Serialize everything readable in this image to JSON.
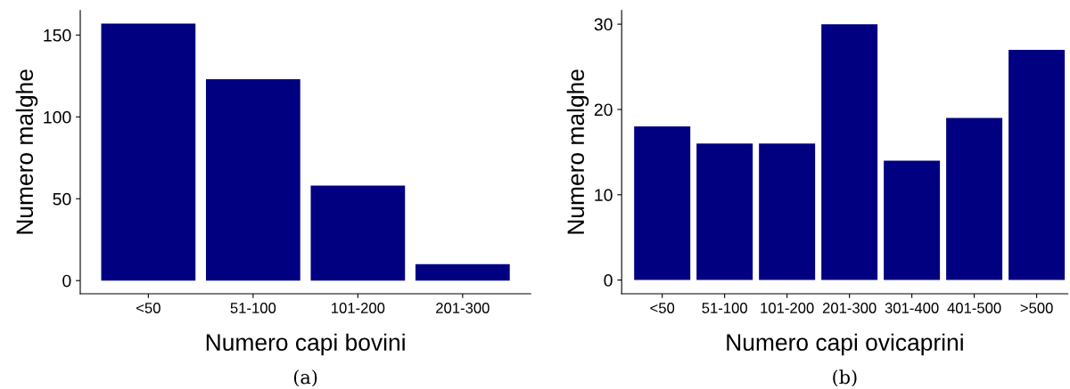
{
  "chart_data": [
    {
      "type": "bar",
      "categories": [
        "<50",
        "51-100",
        "101-200",
        "201-300"
      ],
      "values": [
        157,
        123,
        58,
        10
      ],
      "color": "#000080",
      "xlabel": "Numero capi bovini",
      "ylabel": "Numero malghe",
      "ylim": [
        -8,
        165
      ],
      "yticks": [
        0,
        50,
        100,
        150
      ],
      "grid": false,
      "annotations": [
        "(a)"
      ]
    },
    {
      "type": "bar",
      "categories": [
        "<50",
        "51-100",
        "101-200",
        "201-300",
        "301-400",
        "401-500",
        ">500"
      ],
      "values": [
        18,
        16,
        16,
        30,
        14,
        19,
        27
      ],
      "color": "#000080",
      "xlabel": "Numero capi ovicaprini",
      "ylabel": "Numero malghe",
      "ylim": [
        -1.6,
        31.6
      ],
      "yticks": [
        0,
        10,
        20,
        30
      ],
      "grid": false,
      "annotations": [
        "(b)"
      ]
    }
  ]
}
